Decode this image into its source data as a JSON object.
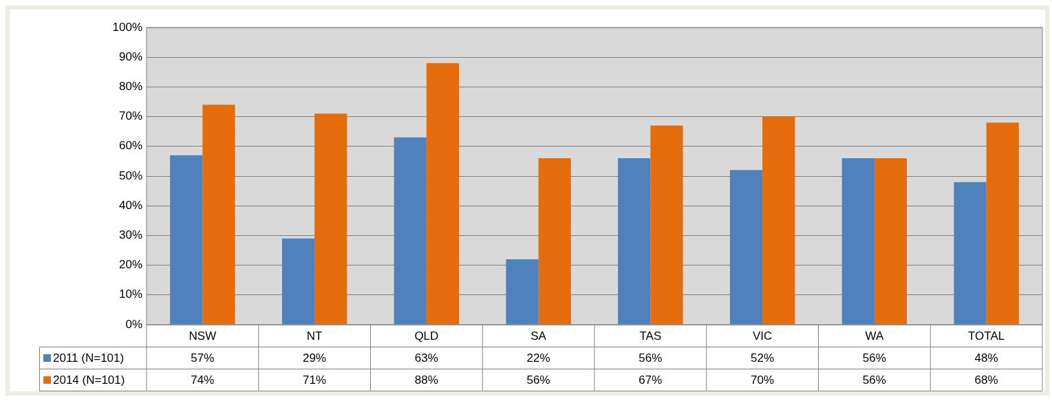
{
  "chart_data": {
    "type": "bar",
    "categories": [
      "NSW",
      "NT",
      "QLD",
      "SA",
      "TAS",
      "VIC",
      "WA",
      "TOTAL"
    ],
    "series": [
      {
        "name": "2011 (N=101)",
        "color": "#4f81bd",
        "values": [
          57,
          29,
          63,
          22,
          56,
          52,
          56,
          48
        ],
        "value_labels": [
          "57%",
          "29%",
          "63%",
          "22%",
          "56%",
          "52%",
          "56%",
          "48%"
        ]
      },
      {
        "name": "2014 (N=101)",
        "color": "#e46c0a",
        "values": [
          74,
          71,
          88,
          56,
          67,
          70,
          56,
          68
        ],
        "value_labels": [
          "74%",
          "71%",
          "88%",
          "56%",
          "67%",
          "70%",
          "56%",
          "68%"
        ]
      }
    ],
    "ylim": [
      0,
      100
    ],
    "yticks": [
      {
        "value": 0,
        "label": "0%"
      },
      {
        "value": 10,
        "label": "10%"
      },
      {
        "value": 20,
        "label": "20%"
      },
      {
        "value": 30,
        "label": "30%"
      },
      {
        "value": 40,
        "label": "40%"
      },
      {
        "value": 50,
        "label": "50%"
      },
      {
        "value": 60,
        "label": "60%"
      },
      {
        "value": 70,
        "label": "70%"
      },
      {
        "value": 80,
        "label": "80%"
      },
      {
        "value": 90,
        "label": "90%"
      },
      {
        "value": 100,
        "label": "100%"
      }
    ],
    "grid": "y",
    "legend": "bottom"
  }
}
